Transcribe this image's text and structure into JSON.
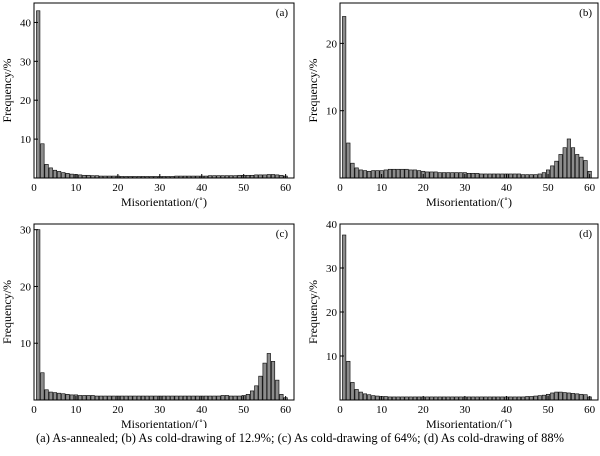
{
  "figure": {
    "caption": "(a) As-annealed; (b) As cold-drawing of 12.9%; (c) As cold-drawing of 64%; (d) As cold-drawing of 88%"
  },
  "chart_data": [
    {
      "type": "bar",
      "panel_label": "(a)",
      "xlabel": "Misorientation/(˚)",
      "ylabel": "Frequency/%",
      "xlim": [
        0,
        62
      ],
      "ylim": [
        0,
        45
      ],
      "xticks": [
        0,
        10,
        20,
        30,
        40,
        50,
        60
      ],
      "yticks": [
        10,
        20,
        30,
        40
      ],
      "bin_width": 1,
      "x": [
        1,
        2,
        3,
        4,
        5,
        6,
        7,
        8,
        9,
        10,
        11,
        12,
        13,
        14,
        15,
        16,
        17,
        18,
        19,
        20,
        21,
        22,
        23,
        24,
        25,
        26,
        27,
        28,
        29,
        30,
        31,
        32,
        33,
        34,
        35,
        36,
        37,
        38,
        39,
        40,
        41,
        42,
        43,
        44,
        45,
        46,
        47,
        48,
        49,
        50,
        51,
        52,
        53,
        54,
        55,
        56,
        57,
        58,
        59,
        60
      ],
      "values": [
        43,
        8.8,
        3.5,
        2.6,
        2,
        1.7,
        1.4,
        1.2,
        1,
        0.9,
        0.8,
        0.7,
        0.7,
        0.6,
        0.6,
        0.5,
        0.5,
        0.5,
        0.5,
        0.5,
        0.4,
        0.4,
        0.4,
        0.4,
        0.4,
        0.4,
        0.4,
        0.4,
        0.4,
        0.4,
        0.4,
        0.4,
        0.4,
        0.5,
        0.5,
        0.5,
        0.5,
        0.5,
        0.5,
        0.5,
        0.5,
        0.6,
        0.6,
        0.6,
        0.6,
        0.6,
        0.6,
        0.6,
        0.7,
        0.7,
        0.7,
        0.7,
        0.8,
        0.8,
        0.8,
        0.9,
        0.9,
        0.8,
        0.7,
        0.5
      ]
    },
    {
      "type": "bar",
      "panel_label": "(b)",
      "xlabel": "Misorientation/(˚)",
      "ylabel": "Frequency/%",
      "xlim": [
        0,
        62
      ],
      "ylim": [
        0,
        26
      ],
      "xticks": [
        0,
        10,
        20,
        30,
        40,
        50,
        60
      ],
      "yticks": [
        10,
        20
      ],
      "bin_width": 1,
      "x": [
        1,
        2,
        3,
        4,
        5,
        6,
        7,
        8,
        9,
        10,
        11,
        12,
        13,
        14,
        15,
        16,
        17,
        18,
        19,
        20,
        21,
        22,
        23,
        24,
        25,
        26,
        27,
        28,
        29,
        30,
        31,
        32,
        33,
        34,
        35,
        36,
        37,
        38,
        39,
        40,
        41,
        42,
        43,
        44,
        45,
        46,
        47,
        48,
        49,
        50,
        51,
        52,
        53,
        54,
        55,
        56,
        57,
        58,
        59,
        60
      ],
      "values": [
        24,
        5.2,
        2.2,
        1.5,
        1.2,
        1.1,
        1,
        1.1,
        1.1,
        1.1,
        1.2,
        1.3,
        1.3,
        1.3,
        1.3,
        1.3,
        1.2,
        1.2,
        1.1,
        1,
        0.9,
        0.9,
        0.9,
        0.8,
        0.8,
        0.8,
        0.8,
        0.8,
        0.8,
        0.8,
        0.7,
        0.7,
        0.7,
        0.6,
        0.6,
        0.6,
        0.6,
        0.6,
        0.6,
        0.6,
        0.6,
        0.6,
        0.6,
        0.5,
        0.5,
        0.5,
        0.5,
        0.6,
        0.8,
        1.2,
        1.8,
        2.5,
        3.5,
        4.5,
        5.8,
        4.5,
        3.5,
        3.1,
        2.6,
        1
      ]
    },
    {
      "type": "bar",
      "panel_label": "(c)",
      "xlabel": "Misorientation/(˚)",
      "ylabel": "Frequency/%",
      "xlim": [
        0,
        62
      ],
      "ylim": [
        0,
        31
      ],
      "xticks": [
        0,
        10,
        20,
        30,
        40,
        50,
        60
      ],
      "yticks": [
        10,
        20,
        30
      ],
      "bin_width": 1,
      "x": [
        1,
        2,
        3,
        4,
        5,
        6,
        7,
        8,
        9,
        10,
        11,
        12,
        13,
        14,
        15,
        16,
        17,
        18,
        19,
        20,
        21,
        22,
        23,
        24,
        25,
        26,
        27,
        28,
        29,
        30,
        31,
        32,
        33,
        34,
        35,
        36,
        37,
        38,
        39,
        40,
        41,
        42,
        43,
        44,
        45,
        46,
        47,
        48,
        49,
        50,
        51,
        52,
        53,
        54,
        55,
        56,
        57,
        58,
        59,
        60
      ],
      "values": [
        30,
        4.8,
        1.8,
        1.4,
        1.3,
        1.2,
        1.1,
        1,
        0.9,
        0.9,
        0.8,
        0.8,
        0.8,
        0.8,
        0.7,
        0.7,
        0.7,
        0.7,
        0.7,
        0.7,
        0.7,
        0.7,
        0.7,
        0.7,
        0.7,
        0.7,
        0.7,
        0.7,
        0.7,
        0.7,
        0.7,
        0.7,
        0.7,
        0.7,
        0.7,
        0.7,
        0.7,
        0.7,
        0.7,
        0.7,
        0.7,
        0.7,
        0.7,
        0.7,
        0.8,
        0.8,
        0.7,
        0.7,
        0.7,
        0.8,
        1,
        1.6,
        2.5,
        4.2,
        6.5,
        8.2,
        6.8,
        3.5,
        1,
        0.4
      ]
    },
    {
      "type": "bar",
      "panel_label": "(d)",
      "xlabel": "Misorientation/(˚)",
      "ylabel": "Frequency/%",
      "xlim": [
        0,
        62
      ],
      "ylim": [
        0,
        40
      ],
      "xticks": [
        0,
        10,
        20,
        30,
        40,
        50,
        60
      ],
      "yticks": [
        10,
        20,
        30,
        40
      ],
      "bin_width": 1,
      "x": [
        1,
        2,
        3,
        4,
        5,
        6,
        7,
        8,
        9,
        10,
        11,
        12,
        13,
        14,
        15,
        16,
        17,
        18,
        19,
        20,
        21,
        22,
        23,
        24,
        25,
        26,
        27,
        28,
        29,
        30,
        31,
        32,
        33,
        34,
        35,
        36,
        37,
        38,
        39,
        40,
        41,
        42,
        43,
        44,
        45,
        46,
        47,
        48,
        49,
        50,
        51,
        52,
        53,
        54,
        55,
        56,
        57,
        58,
        59,
        60
      ],
      "values": [
        37.5,
        8.8,
        4,
        2.4,
        1.8,
        1.4,
        1.2,
        1,
        0.9,
        0.8,
        0.8,
        0.7,
        0.7,
        0.7,
        0.7,
        0.7,
        0.7,
        0.7,
        0.7,
        0.7,
        0.7,
        0.7,
        0.7,
        0.7,
        0.7,
        0.7,
        0.7,
        0.7,
        0.7,
        0.7,
        0.7,
        0.7,
        0.7,
        0.7,
        0.7,
        0.7,
        0.7,
        0.7,
        0.7,
        0.7,
        0.7,
        0.7,
        0.7,
        0.7,
        0.8,
        0.8,
        0.9,
        1,
        1.1,
        1.3,
        1.6,
        1.8,
        1.8,
        1.7,
        1.6,
        1.5,
        1.4,
        1.3,
        1.2,
        0.7
      ]
    }
  ]
}
